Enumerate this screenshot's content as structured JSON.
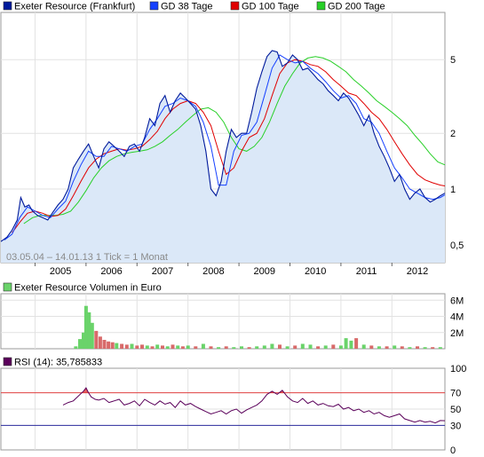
{
  "colors": {
    "price": "#001a9c",
    "gd38": "#1540ff",
    "gd100": "#e00000",
    "gd200": "#28d028",
    "area": "#dbe8f8",
    "vol_up": "#6ad36a",
    "vol_down": "#d86a6a",
    "rsi": "#5a005a",
    "rsi_high": "#e04040",
    "rsi_low": "#2a2a9c"
  },
  "legend": [
    {
      "label": "Exeter Resource (Frankfurt)",
      "color": "#001a9c"
    },
    {
      "label": "GD 38 Tage",
      "color": "#1540ff"
    },
    {
      "label": "GD 100 Tage",
      "color": "#e00000"
    },
    {
      "label": "GD 200 Tage",
      "color": "#28d028"
    }
  ],
  "volume_legend": {
    "label": "Exeter Resource Volumen in Euro",
    "color": "#6ad36a"
  },
  "rsi_legend": {
    "label": "RSI (14): 35,785833",
    "color": "#5a005a"
  },
  "info_text": "03.05.04 – 14.01.13   1 Tick = 1 Monat",
  "chart_data": [
    {
      "type": "line",
      "scale": "log",
      "x_ticks": [
        "2005",
        "2006",
        "2007",
        "2008",
        "2009",
        "2010",
        "2011",
        "2012"
      ],
      "y_ticks": [
        {
          "value": 0.5,
          "label": "0,5"
        },
        {
          "value": 1,
          "label": "1"
        },
        {
          "value": 2,
          "label": "2"
        },
        {
          "value": 5,
          "label": "5"
        }
      ],
      "ylim": [
        0.4,
        9
      ],
      "x_range": [
        2004.33,
        2013.04
      ],
      "series": [
        {
          "name": "Exeter Resource (Frankfurt)",
          "x": [
            2004.33,
            2004.45,
            2004.55,
            2004.65,
            2004.72,
            2004.8,
            2004.88,
            2004.95,
            2005.05,
            2005.15,
            2005.25,
            2005.35,
            2005.45,
            2005.55,
            2005.65,
            2005.75,
            2005.85,
            2005.95,
            2006.05,
            2006.15,
            2006.25,
            2006.35,
            2006.45,
            2006.55,
            2006.65,
            2006.75,
            2006.85,
            2006.95,
            2007.05,
            2007.15,
            2007.25,
            2007.35,
            2007.45,
            2007.55,
            2007.65,
            2007.75,
            2007.85,
            2007.95,
            2008.05,
            2008.15,
            2008.25,
            2008.35,
            2008.45,
            2008.55,
            2008.65,
            2008.75,
            2008.85,
            2008.95,
            2009.05,
            2009.15,
            2009.25,
            2009.35,
            2009.45,
            2009.55,
            2009.65,
            2009.75,
            2009.85,
            2009.95,
            2010.05,
            2010.15,
            2010.25,
            2010.35,
            2010.45,
            2010.55,
            2010.65,
            2010.75,
            2010.85,
            2010.95,
            2011.05,
            2011.15,
            2011.25,
            2011.35,
            2011.45,
            2011.55,
            2011.65,
            2011.75,
            2011.85,
            2011.95,
            2012.05,
            2012.15,
            2012.25,
            2012.35,
            2012.45,
            2012.55,
            2012.65,
            2012.75,
            2012.85,
            2012.95,
            2013.04
          ],
          "y": [
            0.52,
            0.55,
            0.6,
            0.68,
            0.9,
            0.8,
            0.82,
            0.76,
            0.72,
            0.7,
            0.68,
            0.75,
            0.82,
            0.88,
            1.0,
            1.3,
            1.45,
            1.6,
            1.75,
            1.5,
            1.3,
            1.65,
            1.8,
            1.7,
            1.6,
            1.5,
            1.7,
            1.75,
            1.6,
            1.9,
            2.4,
            2.2,
            2.9,
            3.2,
            2.6,
            3.0,
            3.3,
            3.1,
            2.9,
            2.7,
            2.2,
            1.6,
            1.0,
            0.92,
            1.1,
            1.6,
            2.1,
            1.9,
            2.0,
            2.0,
            2.6,
            3.5,
            4.3,
            5.2,
            5.6,
            5.5,
            4.6,
            4.8,
            5.3,
            5.0,
            4.4,
            4.5,
            4.2,
            3.9,
            3.7,
            3.4,
            3.2,
            3.0,
            3.3,
            3.1,
            2.8,
            2.5,
            2.2,
            2.5,
            2.0,
            1.7,
            1.5,
            1.3,
            1.1,
            1.2,
            1.0,
            0.88,
            0.95,
            1.0,
            0.9,
            0.85,
            0.88,
            0.92,
            0.95
          ]
        },
        {
          "name": "GD 38 Tage",
          "x": [
            2004.4,
            2004.55,
            2004.7,
            2004.85,
            2005.0,
            2005.15,
            2005.3,
            2005.45,
            2005.6,
            2005.75,
            2005.9,
            2006.05,
            2006.2,
            2006.35,
            2006.5,
            2006.65,
            2006.8,
            2006.95,
            2007.1,
            2007.25,
            2007.4,
            2007.55,
            2007.7,
            2007.85,
            2008.0,
            2008.15,
            2008.3,
            2008.45,
            2008.6,
            2008.75,
            2008.9,
            2009.05,
            2009.2,
            2009.35,
            2009.5,
            2009.65,
            2009.8,
            2009.95,
            2010.1,
            2010.25,
            2010.4,
            2010.55,
            2010.7,
            2010.85,
            2011.0,
            2011.15,
            2011.3,
            2011.45,
            2011.6,
            2011.75,
            2011.9,
            2012.05,
            2012.2,
            2012.35,
            2012.5,
            2012.65,
            2012.8,
            2012.95,
            2013.04
          ],
          "y": [
            0.53,
            0.57,
            0.7,
            0.8,
            0.76,
            0.72,
            0.7,
            0.78,
            0.86,
            1.1,
            1.35,
            1.6,
            1.5,
            1.5,
            1.7,
            1.65,
            1.6,
            1.7,
            1.75,
            2.1,
            2.4,
            2.8,
            2.9,
            3.1,
            3.0,
            2.8,
            2.3,
            1.7,
            1.05,
            1.05,
            1.6,
            1.95,
            2.0,
            2.3,
            3.2,
            4.5,
            5.3,
            5.0,
            4.8,
            4.9,
            4.5,
            4.2,
            3.8,
            3.4,
            3.1,
            3.2,
            2.9,
            2.4,
            2.3,
            2.0,
            1.6,
            1.3,
            1.15,
            1.0,
            0.95,
            0.9,
            0.88,
            0.9,
            0.93
          ]
        },
        {
          "name": "GD 100 Tage",
          "x": [
            2004.55,
            2004.7,
            2004.85,
            2005.0,
            2005.15,
            2005.3,
            2005.45,
            2005.6,
            2005.75,
            2005.9,
            2006.05,
            2006.2,
            2006.35,
            2006.5,
            2006.65,
            2006.8,
            2006.95,
            2007.1,
            2007.25,
            2007.4,
            2007.55,
            2007.7,
            2007.85,
            2008.0,
            2008.15,
            2008.3,
            2008.45,
            2008.6,
            2008.75,
            2008.9,
            2009.05,
            2009.2,
            2009.35,
            2009.5,
            2009.65,
            2009.8,
            2009.95,
            2010.1,
            2010.25,
            2010.4,
            2010.55,
            2010.7,
            2010.85,
            2011.0,
            2011.15,
            2011.3,
            2011.45,
            2011.6,
            2011.75,
            2011.9,
            2012.05,
            2012.2,
            2012.35,
            2012.5,
            2012.65,
            2012.8,
            2012.95,
            2013.04
          ],
          "y": [
            0.58,
            0.66,
            0.74,
            0.76,
            0.74,
            0.71,
            0.72,
            0.78,
            0.92,
            1.1,
            1.3,
            1.45,
            1.55,
            1.6,
            1.65,
            1.62,
            1.65,
            1.7,
            1.85,
            2.05,
            2.4,
            2.7,
            2.9,
            3.0,
            2.9,
            2.6,
            2.2,
            1.6,
            1.2,
            1.3,
            1.6,
            1.9,
            2.0,
            2.4,
            3.2,
            4.2,
            4.8,
            5.0,
            4.9,
            4.7,
            4.6,
            4.3,
            3.9,
            3.6,
            3.3,
            3.2,
            2.9,
            2.6,
            2.4,
            2.1,
            1.8,
            1.55,
            1.35,
            1.2,
            1.12,
            1.08,
            1.05,
            1.04
          ]
        },
        {
          "name": "GD 200 Tage",
          "x": [
            2004.78,
            2004.95,
            2005.1,
            2005.25,
            2005.4,
            2005.55,
            2005.7,
            2005.85,
            2006.0,
            2006.15,
            2006.3,
            2006.45,
            2006.6,
            2006.75,
            2006.9,
            2007.05,
            2007.2,
            2007.35,
            2007.5,
            2007.65,
            2007.8,
            2007.95,
            2008.1,
            2008.25,
            2008.4,
            2008.55,
            2008.7,
            2008.85,
            2009.0,
            2009.15,
            2009.3,
            2009.45,
            2009.6,
            2009.75,
            2009.9,
            2010.05,
            2010.2,
            2010.35,
            2010.5,
            2010.65,
            2010.8,
            2010.95,
            2011.1,
            2011.25,
            2011.4,
            2011.55,
            2011.7,
            2011.85,
            2012.0,
            2012.15,
            2012.3,
            2012.45,
            2012.6,
            2012.75,
            2012.9,
            2013.04
          ],
          "y": [
            0.65,
            0.7,
            0.72,
            0.72,
            0.72,
            0.73,
            0.76,
            0.85,
            0.98,
            1.15,
            1.3,
            1.42,
            1.5,
            1.55,
            1.58,
            1.6,
            1.63,
            1.7,
            1.8,
            1.95,
            2.1,
            2.3,
            2.5,
            2.7,
            2.75,
            2.6,
            2.3,
            1.9,
            1.65,
            1.6,
            1.7,
            1.9,
            2.3,
            2.9,
            3.6,
            4.2,
            4.8,
            5.1,
            5.2,
            5.1,
            4.9,
            4.6,
            4.3,
            3.9,
            3.6,
            3.3,
            3.0,
            2.8,
            2.6,
            2.4,
            2.2,
            1.95,
            1.75,
            1.55,
            1.4,
            1.35
          ]
        }
      ]
    },
    {
      "type": "bar",
      "title": "Exeter Resource Volumen in Euro",
      "y_ticks": [
        {
          "value": 2,
          "label": "2M"
        },
        {
          "value": 4,
          "label": "4M"
        },
        {
          "value": 6,
          "label": "6M"
        }
      ],
      "ylim": [
        0,
        6.8
      ],
      "x": [
        2005.8,
        2005.88,
        2005.95,
        2006.0,
        2006.06,
        2006.12,
        2006.2,
        2006.28,
        2006.36,
        2006.44,
        2006.52,
        2006.6,
        2006.7,
        2006.8,
        2006.9,
        2007.0,
        2007.1,
        2007.2,
        2007.3,
        2007.4,
        2007.5,
        2007.6,
        2007.7,
        2007.8,
        2007.9,
        2008.0,
        2008.15,
        2008.3,
        2008.45,
        2008.6,
        2008.75,
        2008.9,
        2009.05,
        2009.2,
        2009.35,
        2009.5,
        2009.65,
        2009.8,
        2009.95,
        2010.1,
        2010.25,
        2010.4,
        2010.55,
        2010.7,
        2010.85,
        2011.0,
        2011.1,
        2011.2,
        2011.3,
        2011.45,
        2011.6,
        2011.75,
        2011.9,
        2012.05,
        2012.2,
        2012.35,
        2012.5,
        2012.65,
        2012.8,
        2012.95
      ],
      "values": [
        0.3,
        1.2,
        2.0,
        5.3,
        4.5,
        3.2,
        2.2,
        1.5,
        1.1,
        0.9,
        0.8,
        0.7,
        0.6,
        0.5,
        0.6,
        0.4,
        0.5,
        0.4,
        0.3,
        0.5,
        0.4,
        0.3,
        0.5,
        0.4,
        0.3,
        0.4,
        0.3,
        0.6,
        0.3,
        0.2,
        0.3,
        0.2,
        0.3,
        0.2,
        0.3,
        0.4,
        0.6,
        0.5,
        0.3,
        0.4,
        0.6,
        0.5,
        0.3,
        0.4,
        0.5,
        0.4,
        1.3,
        1.0,
        1.3,
        0.5,
        0.4,
        0.3,
        0.3,
        0.4,
        0.3,
        0.2,
        0.3,
        0.2,
        0.2,
        0.2
      ],
      "down": [
        false,
        false,
        false,
        false,
        false,
        false,
        true,
        true,
        true,
        true,
        true,
        false,
        true,
        true,
        false,
        true,
        true,
        false,
        true,
        false,
        true,
        false,
        true,
        false,
        true,
        false,
        true,
        false,
        true,
        false,
        true,
        false,
        false,
        true,
        false,
        false,
        false,
        true,
        false,
        true,
        false,
        false,
        true,
        false,
        true,
        false,
        false,
        false,
        true,
        false,
        true,
        false,
        true,
        false,
        true,
        false,
        true,
        false,
        true,
        false
      ]
    },
    {
      "type": "line",
      "title": "RSI (14): 35,785833",
      "y_ticks": [
        {
          "value": 0,
          "label": "0"
        },
        {
          "value": 30,
          "label": "30"
        },
        {
          "value": 50,
          "label": "50"
        },
        {
          "value": 70,
          "label": "70"
        },
        {
          "value": 100,
          "label": "100"
        }
      ],
      "ylim": [
        0,
        100
      ],
      "thresholds": [
        70,
        30
      ],
      "x": [
        2005.55,
        2005.65,
        2005.75,
        2005.85,
        2005.95,
        2006.0,
        2006.05,
        2006.1,
        2006.18,
        2006.25,
        2006.35,
        2006.45,
        2006.55,
        2006.65,
        2006.75,
        2006.85,
        2006.95,
        2007.05,
        2007.15,
        2007.25,
        2007.35,
        2007.45,
        2007.55,
        2007.65,
        2007.75,
        2007.85,
        2007.95,
        2008.05,
        2008.15,
        2008.25,
        2008.35,
        2008.45,
        2008.55,
        2008.65,
        2008.75,
        2008.85,
        2008.95,
        2009.05,
        2009.15,
        2009.25,
        2009.35,
        2009.45,
        2009.55,
        2009.65,
        2009.75,
        2009.85,
        2009.95,
        2010.05,
        2010.15,
        2010.25,
        2010.35,
        2010.45,
        2010.55,
        2010.65,
        2010.75,
        2010.85,
        2010.95,
        2011.05,
        2011.15,
        2011.25,
        2011.35,
        2011.45,
        2011.55,
        2011.65,
        2011.75,
        2011.85,
        2011.95,
        2012.05,
        2012.15,
        2012.25,
        2012.35,
        2012.45,
        2012.55,
        2012.65,
        2012.75,
        2012.85,
        2012.95,
        2013.04
      ],
      "values": [
        55,
        58,
        60,
        66,
        72,
        76,
        70,
        65,
        62,
        61,
        63,
        58,
        60,
        62,
        55,
        57,
        60,
        54,
        62,
        58,
        55,
        60,
        56,
        58,
        52,
        60,
        55,
        57,
        53,
        50,
        47,
        44,
        46,
        48,
        44,
        48,
        50,
        45,
        49,
        52,
        55,
        60,
        68,
        72,
        68,
        73,
        65,
        60,
        58,
        63,
        57,
        60,
        55,
        57,
        54,
        53,
        56,
        50,
        52,
        48,
        50,
        46,
        48,
        44,
        46,
        42,
        40,
        42,
        44,
        38,
        36,
        34,
        36,
        34,
        35,
        33,
        36,
        35.8
      ]
    }
  ]
}
